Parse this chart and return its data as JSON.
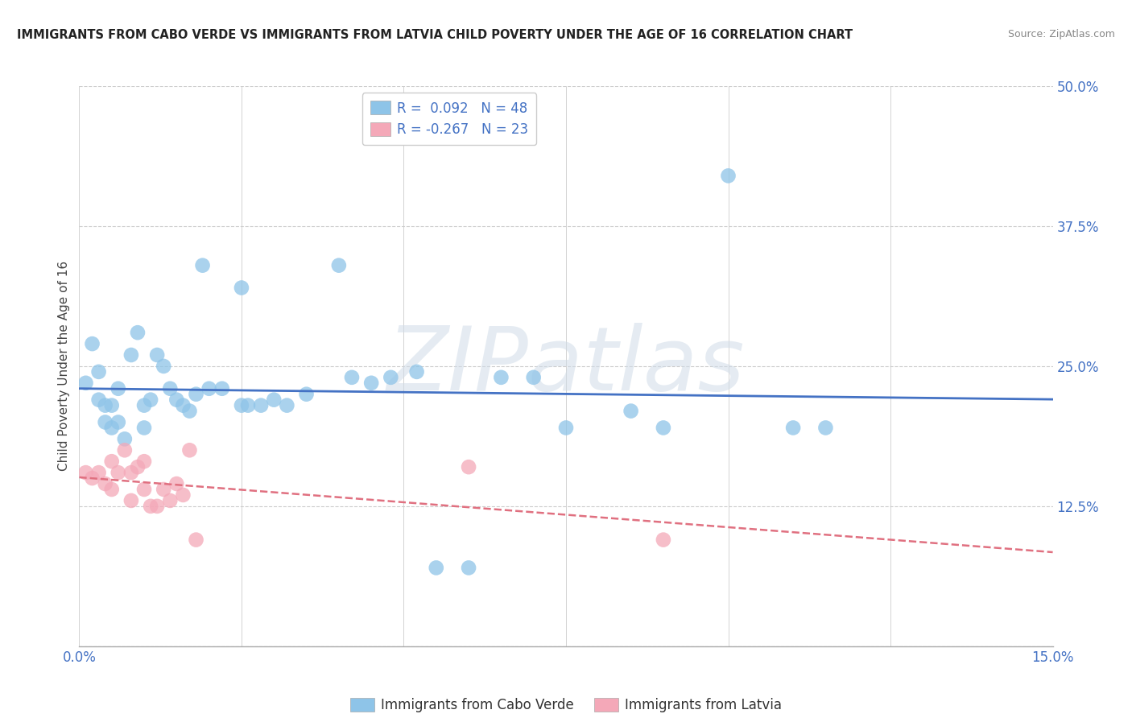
{
  "title": "IMMIGRANTS FROM CABO VERDE VS IMMIGRANTS FROM LATVIA CHILD POVERTY UNDER THE AGE OF 16 CORRELATION CHART",
  "source": "Source: ZipAtlas.com",
  "ylabel": "Child Poverty Under the Age of 16",
  "xlim": [
    0.0,
    0.15
  ],
  "ylim": [
    0.0,
    0.5
  ],
  "yticks": [
    0.0,
    0.125,
    0.25,
    0.375,
    0.5
  ],
  "ytick_labels": [
    "",
    "12.5%",
    "25.0%",
    "37.5%",
    "50.0%"
  ],
  "xticks": [
    0.0,
    0.025,
    0.05,
    0.075,
    0.1,
    0.125,
    0.15
  ],
  "xtick_labels": [
    "0.0%",
    "",
    "",
    "",
    "",
    "",
    "15.0%"
  ],
  "cabo_verde_R": 0.092,
  "cabo_verde_N": 48,
  "latvia_R": -0.267,
  "latvia_N": 23,
  "cabo_verde_color": "#8ec4e8",
  "latvia_color": "#f4a8b8",
  "trend_cabo_color": "#4472c4",
  "trend_latvia_color": "#e07080",
  "cabo_verde_x": [
    0.001,
    0.002,
    0.003,
    0.003,
    0.004,
    0.004,
    0.005,
    0.005,
    0.006,
    0.006,
    0.007,
    0.008,
    0.009,
    0.01,
    0.01,
    0.011,
    0.012,
    0.013,
    0.014,
    0.015,
    0.016,
    0.017,
    0.018,
    0.019,
    0.02,
    0.022,
    0.025,
    0.025,
    0.026,
    0.028,
    0.03,
    0.032,
    0.035,
    0.04,
    0.042,
    0.045,
    0.048,
    0.052,
    0.055,
    0.06,
    0.065,
    0.07,
    0.075,
    0.085,
    0.09,
    0.1,
    0.11,
    0.115
  ],
  "cabo_verde_y": [
    0.235,
    0.27,
    0.245,
    0.22,
    0.215,
    0.2,
    0.195,
    0.215,
    0.23,
    0.2,
    0.185,
    0.26,
    0.28,
    0.195,
    0.215,
    0.22,
    0.26,
    0.25,
    0.23,
    0.22,
    0.215,
    0.21,
    0.225,
    0.34,
    0.23,
    0.23,
    0.215,
    0.32,
    0.215,
    0.215,
    0.22,
    0.215,
    0.225,
    0.34,
    0.24,
    0.235,
    0.24,
    0.245,
    0.07,
    0.07,
    0.24,
    0.24,
    0.195,
    0.21,
    0.195,
    0.42,
    0.195,
    0.195
  ],
  "latvia_x": [
    0.001,
    0.002,
    0.003,
    0.004,
    0.005,
    0.005,
    0.006,
    0.007,
    0.008,
    0.008,
    0.009,
    0.01,
    0.01,
    0.011,
    0.012,
    0.013,
    0.014,
    0.015,
    0.016,
    0.017,
    0.018,
    0.06,
    0.09
  ],
  "latvia_y": [
    0.155,
    0.15,
    0.155,
    0.145,
    0.14,
    0.165,
    0.155,
    0.175,
    0.155,
    0.13,
    0.16,
    0.165,
    0.14,
    0.125,
    0.125,
    0.14,
    0.13,
    0.145,
    0.135,
    0.175,
    0.095,
    0.16,
    0.095
  ],
  "watermark": "ZIPatlas",
  "background_color": "#ffffff",
  "grid_color": "#cccccc"
}
